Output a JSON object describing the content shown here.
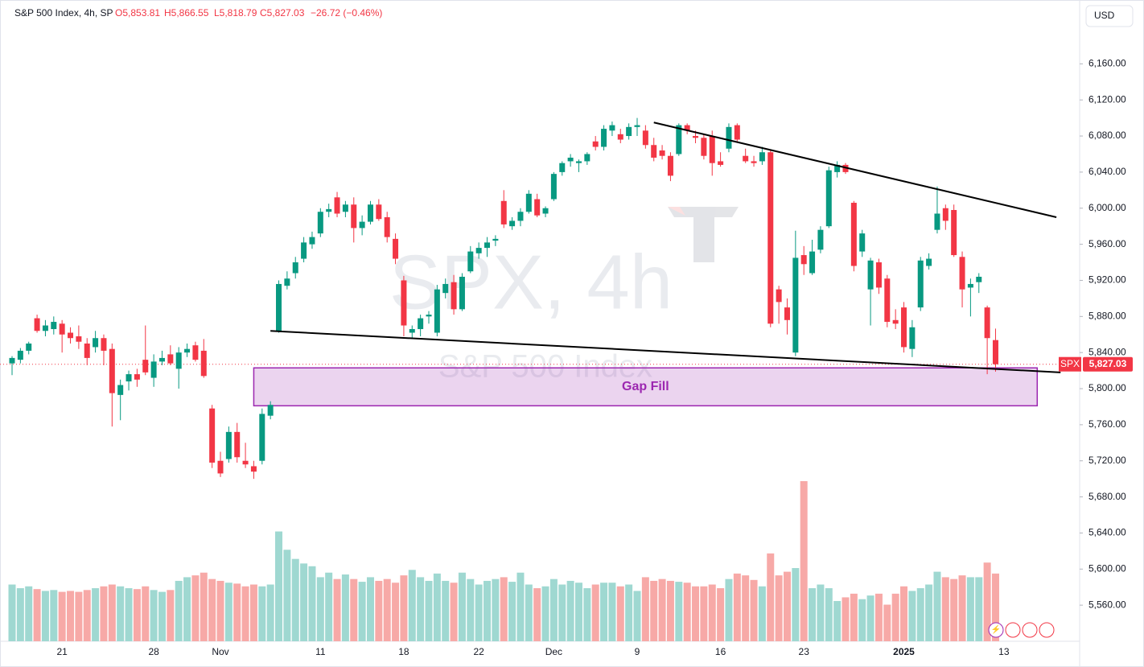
{
  "header": {
    "symbol": "S&P 500 Index, 4h, SP",
    "open": "O5,853.81",
    "high": "H5,866.55",
    "low": "L5,818.79",
    "close": "C5,827.03",
    "change": "−26.72 (−0.46%)",
    "currency": "USD"
  },
  "watermark": {
    "line1": "SPX, 4h",
    "line2": "S&P 500 Index"
  },
  "price_tag": {
    "symbol": "SPX",
    "value": "5,827.03"
  },
  "chart_data": {
    "type": "candlestick",
    "categories": [
      null,
      null,
      null,
      null,
      null,
      null,
      "21",
      null,
      null,
      null,
      null,
      null,
      null,
      null,
      null,
      null,
      null,
      "28",
      null,
      null,
      null,
      null,
      null,
      null,
      null,
      "Nov",
      null,
      null,
      null,
      null,
      null,
      null,
      null,
      null,
      null,
      null,
      null,
      "11",
      null,
      null,
      null,
      null,
      null,
      null,
      null,
      null,
      null,
      "18",
      null,
      null,
      null,
      null,
      null,
      null,
      null,
      null,
      "22",
      null,
      null,
      null,
      null,
      null,
      null,
      null,
      null,
      "Dec",
      null,
      null,
      null,
      null,
      null,
      null,
      null,
      null,
      null,
      "9",
      null,
      null,
      null,
      null,
      null,
      null,
      null,
      null,
      null,
      "16",
      null,
      null,
      null,
      null,
      null,
      null,
      null,
      null,
      null,
      "23",
      null,
      null,
      null,
      null,
      null,
      null,
      null,
      null,
      null,
      null,
      null,
      "2025",
      null,
      null,
      null,
      null,
      null,
      null,
      null,
      null,
      null,
      null,
      null,
      "13"
    ],
    "ohlc": [
      [
        5828,
        5836,
        5815,
        5834
      ],
      [
        5832,
        5845,
        5828,
        5842
      ],
      [
        5842,
        5852,
        5838,
        5850
      ],
      [
        5878,
        5882,
        5862,
        5864
      ],
      [
        5864,
        5876,
        5858,
        5870
      ],
      [
        5866,
        5880,
        5860,
        5874
      ],
      [
        5872,
        5876,
        5840,
        5860
      ],
      [
        5862,
        5868,
        5850,
        5856
      ],
      [
        5858,
        5870,
        5844,
        5852
      ],
      [
        5850,
        5856,
        5826,
        5834
      ],
      [
        5846,
        5864,
        5840,
        5856
      ],
      [
        5856,
        5860,
        5826,
        5842
      ],
      [
        5844,
        5850,
        5758,
        5795
      ],
      [
        5793,
        5810,
        5765,
        5804
      ],
      [
        5808,
        5820,
        5798,
        5816
      ],
      [
        5816,
        5822,
        5802,
        5810
      ],
      [
        5832,
        5870,
        5815,
        5818
      ],
      [
        5812,
        5838,
        5802,
        5830
      ],
      [
        5830,
        5842,
        5826,
        5834
      ],
      [
        5838,
        5848,
        5826,
        5828
      ],
      [
        5822,
        5846,
        5800,
        5840
      ],
      [
        5840,
        5850,
        5835,
        5844
      ],
      [
        5848,
        5852,
        5830,
        5832
      ],
      [
        5842,
        5855,
        5812,
        5814
      ],
      [
        5778,
        5782,
        5712,
        5718
      ],
      [
        5720,
        5730,
        5702,
        5706
      ],
      [
        5722,
        5758,
        5718,
        5752
      ],
      [
        5752,
        5762,
        5718,
        5724
      ],
      [
        5720,
        5740,
        5712,
        5716
      ],
      [
        5714,
        5720,
        5700,
        5708
      ],
      [
        5720,
        5778,
        5716,
        5772
      ],
      [
        5770,
        5786,
        5766,
        5782
      ],
      [
        5864,
        5920,
        5862,
        5916
      ],
      [
        5914,
        5930,
        5910,
        5922
      ],
      [
        5928,
        5946,
        5922,
        5940
      ],
      [
        5944,
        5968,
        5940,
        5962
      ],
      [
        5960,
        5974,
        5955,
        5968
      ],
      [
        5972,
        6000,
        5968,
        5996
      ],
      [
        5996,
        6005,
        5990,
        5999
      ],
      [
        6012,
        6018,
        5990,
        5994
      ],
      [
        5996,
        6008,
        5990,
        6004
      ],
      [
        6004,
        6012,
        5962,
        5978
      ],
      [
        5978,
        5992,
        5970,
        5985
      ],
      [
        5985,
        6008,
        5982,
        6004
      ],
      [
        6004,
        6010,
        5986,
        5988
      ],
      [
        5990,
        5996,
        5962,
        5968
      ],
      [
        5966,
        5972,
        5938,
        5944
      ],
      [
        5920,
        5925,
        5858,
        5870
      ],
      [
        5862,
        5870,
        5856,
        5866
      ],
      [
        5866,
        5882,
        5858,
        5878
      ],
      [
        5880,
        5886,
        5872,
        5882
      ],
      [
        5862,
        5915,
        5858,
        5910
      ],
      [
        5906,
        5922,
        5900,
        5916
      ],
      [
        5918,
        5926,
        5882,
        5888
      ],
      [
        5888,
        5928,
        5886,
        5924
      ],
      [
        5930,
        5958,
        5928,
        5952
      ],
      [
        5950,
        5962,
        5944,
        5956
      ],
      [
        5956,
        5968,
        5946,
        5962
      ],
      [
        5964,
        5970,
        5958,
        5966
      ],
      [
        6008,
        6020,
        5978,
        5982
      ],
      [
        5980,
        5990,
        5976,
        5986
      ],
      [
        5986,
        6000,
        5980,
        5996
      ],
      [
        5996,
        6020,
        5994,
        6016
      ],
      [
        6010,
        6016,
        5990,
        5992
      ],
      [
        5994,
        6002,
        5990,
        6000
      ],
      [
        6010,
        6040,
        6008,
        6038
      ],
      [
        6040,
        6052,
        6036,
        6050
      ],
      [
        6052,
        6060,
        6046,
        6056
      ],
      [
        6050,
        6054,
        6040,
        6052
      ],
      [
        6052,
        6062,
        6048,
        6060
      ],
      [
        6074,
        6080,
        6064,
        6068
      ],
      [
        6068,
        6092,
        6064,
        6088
      ],
      [
        6086,
        6096,
        6080,
        6092
      ],
      [
        6082,
        6088,
        6072,
        6076
      ],
      [
        6080,
        6094,
        6076,
        6090
      ],
      [
        6090,
        6100,
        6080,
        6092
      ],
      [
        6086,
        6092,
        6066,
        6070
      ],
      [
        6070,
        6078,
        6052,
        6056
      ],
      [
        6064,
        6070,
        6054,
        6058
      ],
      [
        6058,
        6062,
        6030,
        6036
      ],
      [
        6060,
        6094,
        6058,
        6092
      ],
      [
        6092,
        6094,
        6082,
        6086
      ],
      [
        6080,
        6086,
        6072,
        6078
      ],
      [
        6078,
        6082,
        6054,
        6058
      ],
      [
        6080,
        6086,
        6036,
        6050
      ],
      [
        6052,
        6062,
        6046,
        6048
      ],
      [
        6066,
        6094,
        6062,
        6090
      ],
      [
        6092,
        6094,
        6074,
        6076
      ],
      [
        6058,
        6066,
        6050,
        6052
      ],
      [
        6052,
        6058,
        6046,
        6050
      ],
      [
        6052,
        6068,
        6048,
        6062
      ],
      [
        6062,
        6064,
        5868,
        5872
      ],
      [
        5910,
        5914,
        5872,
        5896
      ],
      [
        5890,
        5900,
        5860,
        5876
      ],
      [
        5840,
        5975,
        5836,
        5945
      ],
      [
        5948,
        5958,
        5926,
        5938
      ],
      [
        5928,
        5965,
        5926,
        5952
      ],
      [
        5954,
        5980,
        5950,
        5976
      ],
      [
        5980,
        6046,
        5978,
        6042
      ],
      [
        6040,
        6052,
        6034,
        6048
      ],
      [
        6048,
        6050,
        6038,
        6040
      ],
      [
        6006,
        6008,
        5930,
        5936
      ],
      [
        5952,
        5976,
        5946,
        5972
      ],
      [
        5910,
        5945,
        5870,
        5942
      ],
      [
        5940,
        5944,
        5905,
        5912
      ],
      [
        5922,
        5926,
        5868,
        5874
      ],
      [
        5876,
        5888,
        5866,
        5872
      ],
      [
        5890,
        5896,
        5840,
        5846
      ],
      [
        5844,
        5876,
        5835,
        5868
      ],
      [
        5890,
        5946,
        5886,
        5942
      ],
      [
        5936,
        5950,
        5932,
        5944
      ],
      [
        5976,
        6024,
        5972,
        5994
      ],
      [
        6000,
        6004,
        5976,
        5986
      ],
      [
        5998,
        6004,
        5946,
        5948
      ],
      [
        5946,
        5952,
        5890,
        5910
      ],
      [
        5912,
        5922,
        5880,
        5916
      ],
      [
        5918,
        5928,
        5906,
        5924
      ],
      [
        5890,
        5892,
        5816,
        5856
      ],
      [
        5853.81,
        5866.55,
        5818.79,
        5827.03
      ],
      null
    ],
    "volume": [
      62,
      58,
      60,
      57,
      55,
      56,
      54,
      55,
      54,
      56,
      58,
      60,
      62,
      60,
      58,
      57,
      60,
      56,
      54,
      56,
      66,
      70,
      72,
      75,
      68,
      66,
      64,
      63,
      60,
      62,
      60,
      62,
      120,
      100,
      90,
      85,
      82,
      70,
      75,
      68,
      73,
      68,
      65,
      70,
      66,
      68,
      64,
      72,
      78,
      70,
      66,
      74,
      66,
      64,
      75,
      68,
      62,
      66,
      68,
      70,
      65,
      75,
      62,
      58,
      60,
      68,
      62,
      66,
      64,
      58,
      62,
      64,
      64,
      60,
      62,
      55,
      70,
      66,
      68,
      66,
      65,
      64,
      60,
      60,
      62,
      58,
      68,
      74,
      72,
      67,
      60,
      96,
      72,
      76,
      80,
      175,
      58,
      62,
      58,
      44,
      48,
      52,
      46,
      50,
      52,
      40,
      52,
      60,
      55,
      58,
      62,
      76,
      70,
      68,
      72,
      70,
      70,
      86,
      74,
      null
    ],
    "up_color": "#089981",
    "down_color": "#f23645",
    "up_volume_color": "#9fd8d1",
    "down_volume_color": "#f7a9a7",
    "ylim": [
      5520,
      6204
    ],
    "yticks": [
      {
        "value": 5560,
        "label": "5,560.00"
      },
      {
        "value": 5600,
        "label": "5,600.00"
      },
      {
        "value": 5640,
        "label": "5,640.00"
      },
      {
        "value": 5680,
        "label": "5,680.00"
      },
      {
        "value": 5720,
        "label": "5,720.00"
      },
      {
        "value": 5760,
        "label": "5,760.00"
      },
      {
        "value": 5800,
        "label": "5,800.00"
      },
      {
        "value": 5840,
        "label": "5,840.00"
      },
      {
        "value": 5880,
        "label": "5,880.00"
      },
      {
        "value": 5920,
        "label": "5,920.00"
      },
      {
        "value": 5960,
        "label": "5,960.00"
      },
      {
        "value": 6000,
        "label": "6,000.00"
      },
      {
        "value": 6040,
        "label": "6,040.00"
      },
      {
        "value": 6080,
        "label": "6,080.00"
      },
      {
        "value": 6120,
        "label": "6,120.00"
      },
      {
        "value": 6160,
        "label": "6,160.00"
      }
    ],
    "zone": {
      "label": "Gap Fill",
      "x": [
        29,
        123
      ],
      "y": [
        5823,
        5781
      ]
    },
    "trendlines": [
      {
        "x": [
          77,
          125.3
        ],
        "y": [
          6095,
          5990
        ]
      },
      {
        "x": [
          31,
          125.8
        ],
        "y": [
          5864,
          5818
        ]
      }
    ],
    "last_price": 5827.03
  }
}
